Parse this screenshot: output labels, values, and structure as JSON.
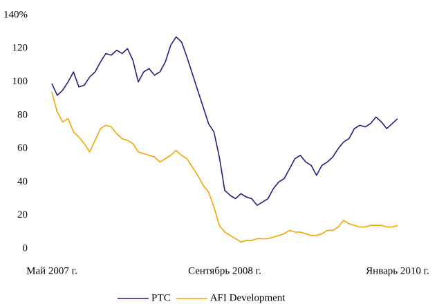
{
  "chart_data": {
    "type": "line",
    "categories": [
      "Май 2007 г.",
      null,
      null,
      null,
      null,
      null,
      null,
      null,
      null,
      null,
      null,
      null,
      null,
      null,
      null,
      null,
      null,
      null,
      null,
      null,
      null,
      null,
      null,
      null,
      null,
      null,
      null,
      null,
      null,
      null,
      null,
      null,
      "Сентябрь 2008 г.",
      null,
      null,
      null,
      null,
      null,
      null,
      null,
      null,
      null,
      null,
      null,
      null,
      null,
      null,
      null,
      null,
      null,
      null,
      null,
      null,
      null,
      null,
      null,
      null,
      null,
      null,
      null,
      null,
      null,
      null,
      null,
      "Январь 2010 г."
    ],
    "series": [
      {
        "name": "РТС",
        "color": "#1f1f7a",
        "values": [
          99,
          92,
          95,
          100,
          106,
          97,
          98,
          103,
          106,
          112,
          117,
          116,
          119,
          117,
          120,
          113,
          100,
          106,
          108,
          104,
          106,
          112,
          122,
          127,
          124,
          115,
          105,
          95,
          85,
          75,
          70,
          55,
          35,
          32,
          30,
          33,
          31,
          30,
          26,
          28,
          30,
          36,
          40,
          42,
          48,
          54,
          56,
          52,
          50,
          44,
          50,
          52,
          55,
          60,
          64,
          66,
          72,
          74,
          73,
          75,
          79,
          76,
          72,
          75,
          78
        ]
      },
      {
        "name": "AFI Development",
        "color": "#f5a300",
        "values": [
          94,
          82,
          76,
          78,
          70,
          67,
          63,
          58,
          65,
          72,
          74,
          73,
          69,
          66,
          65,
          63,
          58,
          57,
          56,
          55,
          52,
          54,
          56,
          59,
          56,
          54,
          49,
          44,
          38,
          34,
          25,
          14,
          10,
          8,
          6,
          4,
          5,
          5,
          6,
          6,
          6,
          7,
          8,
          9,
          11,
          10,
          10,
          9,
          8,
          8,
          9,
          11,
          11,
          13,
          17,
          15,
          14,
          13,
          13,
          14,
          14,
          14,
          13,
          13,
          14
        ]
      }
    ],
    "ylim": [
      0,
      140
    ],
    "yticks": [
      0,
      20,
      40,
      60,
      80,
      100,
      120,
      {
        "value": 140,
        "label": "140%"
      }
    ],
    "legend": "bottom"
  }
}
